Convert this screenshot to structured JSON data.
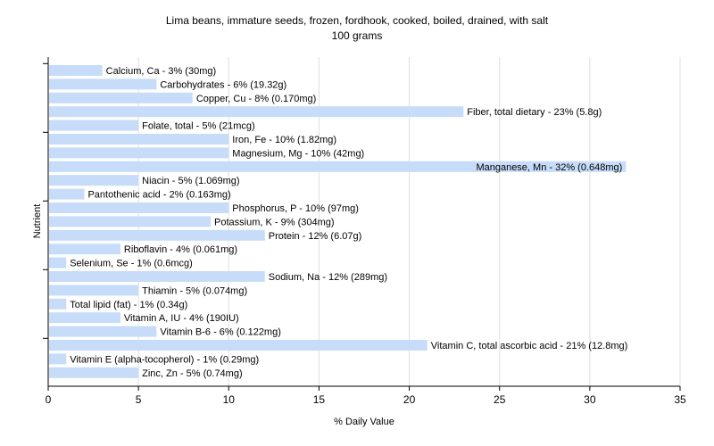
{
  "chart_data": {
    "type": "bar",
    "orientation": "horizontal",
    "title": "Lima beans, immature seeds, frozen, fordhook, cooked, boiled, drained, with salt",
    "subtitle": "100 grams",
    "xlabel": "% Daily Value",
    "ylabel": "Nutrient",
    "xlim": [
      0,
      35
    ],
    "x_ticks": [
      "0",
      "5",
      "10",
      "15",
      "20",
      "25",
      "30",
      "35"
    ],
    "grid": true,
    "bar_color": "#c6dcf8",
    "grid_color": "#e0e0e0",
    "categories": [
      "Calcium, Ca",
      "Carbohydrates",
      "Copper, Cu",
      "Fiber, total dietary",
      "Folate, total",
      "Iron, Fe",
      "Magnesium, Mg",
      "Manganese, Mn",
      "Niacin",
      "Pantothenic acid",
      "Phosphorus, P",
      "Potassium, K",
      "Protein",
      "Riboflavin",
      "Selenium, Se",
      "Sodium, Na",
      "Thiamin",
      "Total lipid (fat)",
      "Vitamin A, IU",
      "Vitamin B-6",
      "Vitamin C, total ascorbic acid",
      "Vitamin E (alpha-tocopherol)",
      "Zinc, Zn"
    ],
    "values": [
      3,
      6,
      8,
      23,
      5,
      10,
      10,
      32,
      5,
      2,
      10,
      9,
      12,
      4,
      1,
      12,
      5,
      1,
      4,
      6,
      21,
      1,
      5
    ],
    "labels": [
      "Calcium, Ca - 3% (30mg)",
      "Carbohydrates - 6% (19.32g)",
      "Copper, Cu - 8% (0.170mg)",
      "Fiber, total dietary - 23% (5.8g)",
      "Folate, total - 5% (21mcg)",
      "Iron, Fe - 10% (1.82mg)",
      "Magnesium, Mg - 10% (42mg)",
      "Manganese, Mn - 32% (0.648mg)",
      "Niacin - 5% (1.069mg)",
      "Pantothenic acid - 2% (0.163mg)",
      "Phosphorus, P - 10% (97mg)",
      "Potassium, K - 9% (304mg)",
      "Protein - 12% (6.07g)",
      "Riboflavin - 4% (0.061mg)",
      "Selenium, Se - 1% (0.6mcg)",
      "Sodium, Na - 12% (289mg)",
      "Thiamin - 5% (0.074mg)",
      "Total lipid (fat) - 1% (0.34g)",
      "Vitamin A, IU - 4% (190IU)",
      "Vitamin B-6 - 6% (0.122mg)",
      "Vitamin C, total ascorbic acid - 21% (12.8mg)",
      "Vitamin E (alpha-tocopherol) - 1% (0.29mg)",
      "Zinc, Zn - 5% (0.74mg)"
    ]
  }
}
